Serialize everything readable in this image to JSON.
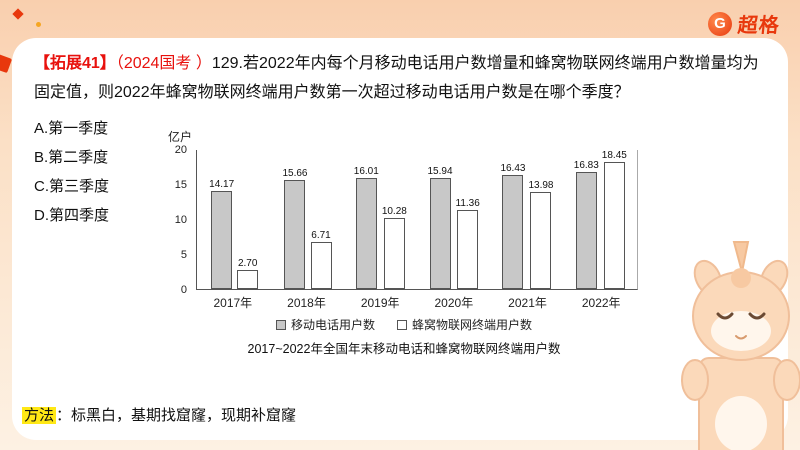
{
  "brand": {
    "logo_letter": "G",
    "logo_text": "超格"
  },
  "question": {
    "tag": "【拓展41】",
    "exam": "（2024国考 ）",
    "text": "129.若2022年内每个月移动电话用户数增量和蜂窝物联网终端用户数增量均为固定值，则2022年蜂窝物联网终端用户数第一次超过移动电话用户数是在哪个季度？",
    "options": [
      {
        "label": "A.第一季度"
      },
      {
        "label": "B.第二季度"
      },
      {
        "label": "C.第三季度"
      },
      {
        "label": "D.第四季度"
      }
    ]
  },
  "chart_data": {
    "type": "bar",
    "title": "2017~2022年全国年末移动电话和蜂窝物联网终端用户数",
    "ylabel": "亿户",
    "ylim": [
      0,
      20
    ],
    "yticks": [
      0,
      5,
      10,
      15,
      20
    ],
    "categories": [
      "2017年",
      "2018年",
      "2019年",
      "2020年",
      "2021年",
      "2022年"
    ],
    "series": [
      {
        "name": "移动电话用户数",
        "color": "#c8c8c8",
        "values": [
          14.17,
          15.66,
          16.01,
          15.94,
          16.43,
          16.83
        ]
      },
      {
        "name": "蜂窝物联网终端用户数",
        "color": "#ffffff",
        "values": [
          2.7,
          6.71,
          10.28,
          11.36,
          13.98,
          18.45
        ]
      }
    ],
    "legend_position": "bottom",
    "grid": false
  },
  "method": {
    "label": "方法",
    "text": "：标黑白，基期找窟窿，现期补窟窿"
  }
}
